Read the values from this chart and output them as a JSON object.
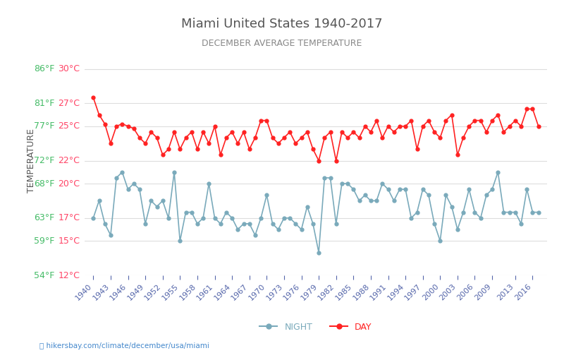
{
  "title": "Miami United States 1940-2017",
  "subtitle": "DECEMBER AVERAGE TEMPERATURE",
  "ylabel": "TEMPERATURE",
  "xlabel_url": "hikersbay.com/climate/december/usa/miami",
  "yticks_celsius": [
    12,
    15,
    17,
    20,
    22,
    25,
    27,
    30
  ],
  "yticks_fahrenheit": [
    54,
    59,
    63,
    68,
    72,
    77,
    81,
    86
  ],
  "years": [
    1940,
    1941,
    1942,
    1943,
    1944,
    1945,
    1946,
    1947,
    1948,
    1949,
    1950,
    1951,
    1952,
    1953,
    1954,
    1955,
    1956,
    1957,
    1958,
    1959,
    1960,
    1961,
    1962,
    1963,
    1964,
    1965,
    1966,
    1967,
    1968,
    1969,
    1970,
    1971,
    1972,
    1973,
    1974,
    1975,
    1976,
    1977,
    1978,
    1979,
    1980,
    1981,
    1982,
    1983,
    1984,
    1985,
    1986,
    1987,
    1988,
    1989,
    1990,
    1991,
    1992,
    1993,
    1994,
    1995,
    1996,
    1997,
    1998,
    1999,
    2000,
    2001,
    2002,
    2003,
    2004,
    2005,
    2006,
    2007,
    2008,
    2009,
    2010,
    2011,
    2012,
    2013,
    2014,
    2015,
    2016,
    2017
  ],
  "day_temps": [
    27.5,
    26.0,
    25.2,
    23.5,
    25.0,
    25.2,
    25.0,
    24.8,
    24.0,
    23.5,
    24.5,
    24.0,
    22.5,
    23.0,
    24.5,
    23.0,
    24.0,
    24.5,
    23.0,
    24.5,
    23.5,
    25.0,
    22.5,
    24.0,
    24.5,
    23.5,
    24.5,
    23.0,
    24.0,
    25.5,
    25.5,
    24.0,
    23.5,
    24.0,
    24.5,
    23.5,
    24.0,
    24.5,
    23.0,
    22.0,
    24.0,
    24.5,
    22.0,
    24.5,
    24.0,
    24.5,
    24.0,
    25.0,
    24.5,
    25.5,
    24.0,
    25.0,
    24.5,
    25.0,
    25.0,
    25.5,
    23.0,
    25.0,
    25.5,
    24.5,
    24.0,
    25.5,
    26.0,
    22.5,
    24.0,
    25.0,
    25.5,
    25.5,
    24.5,
    25.5,
    26.0,
    24.5,
    25.0,
    25.5,
    25.0,
    26.5,
    26.5,
    25.0
  ],
  "night_temps": [
    17.0,
    18.5,
    16.5,
    15.5,
    20.5,
    21.0,
    19.5,
    20.0,
    19.5,
    16.5,
    18.5,
    18.0,
    18.5,
    17.0,
    21.0,
    15.0,
    17.5,
    17.5,
    16.5,
    17.0,
    20.0,
    17.0,
    16.5,
    17.5,
    17.0,
    16.0,
    16.5,
    16.5,
    15.5,
    17.0,
    19.0,
    16.5,
    16.0,
    17.0,
    17.0,
    16.5,
    16.0,
    18.0,
    16.5,
    14.0,
    20.5,
    20.5,
    16.5,
    20.0,
    20.0,
    19.5,
    18.5,
    19.0,
    18.5,
    18.5,
    20.0,
    19.5,
    18.5,
    19.5,
    19.5,
    17.0,
    17.5,
    19.5,
    19.0,
    16.5,
    15.0,
    19.0,
    18.0,
    16.0,
    17.5,
    19.5,
    17.5,
    17.0,
    19.0,
    19.5,
    21.0,
    17.5,
    17.5,
    17.5,
    16.5,
    19.5,
    17.5,
    17.5
  ],
  "day_color": "#ff2222",
  "night_color": "#7aaabb",
  "title_color": "#555555",
  "subtitle_color": "#888888",
  "ylabel_color": "#555555",
  "ytick_color_celsius": "#ff4466",
  "ytick_color_fahrenheit": "#44bb66",
  "xtick_color": "#5566aa",
  "grid_color": "#dddddd",
  "background_color": "#ffffff",
  "url_color": "#4488cc",
  "legend_night_label": "NIGHT",
  "legend_day_label": "DAY",
  "xtick_years": [
    1940,
    1943,
    1946,
    1949,
    1952,
    1955,
    1958,
    1961,
    1964,
    1967,
    1970,
    1973,
    1976,
    1979,
    1982,
    1985,
    1988,
    1991,
    1994,
    1997,
    2000,
    2003,
    2006,
    2009,
    2013,
    2016
  ]
}
